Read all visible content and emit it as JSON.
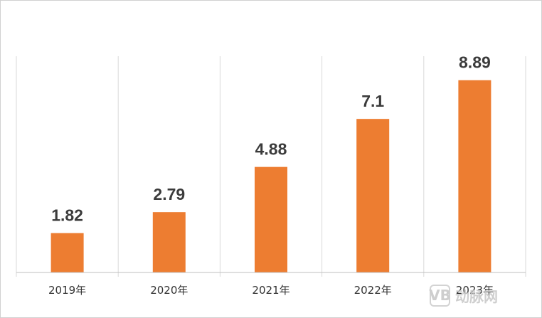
{
  "chart_data": {
    "type": "bar",
    "title": "",
    "xlabel": "",
    "ylabel": "",
    "categories": [
      "2019年",
      "2020年",
      "2021年",
      "2022年",
      "2023年"
    ],
    "values": [
      1.82,
      2.79,
      4.88,
      7.1,
      8.89
    ],
    "value_labels": [
      "1.82",
      "2.79",
      "4.88",
      "7.1",
      "8.89"
    ],
    "ylim": [
      0,
      10
    ],
    "grid": "vertical category separators",
    "legend": "none",
    "colors": {
      "bar": "#ED7D31",
      "gridline": "#d9d9d9",
      "axis": "#bfbfbf",
      "label": "#3b3b3b"
    }
  },
  "watermark": {
    "badge": "VB",
    "text": "动脉网"
  }
}
